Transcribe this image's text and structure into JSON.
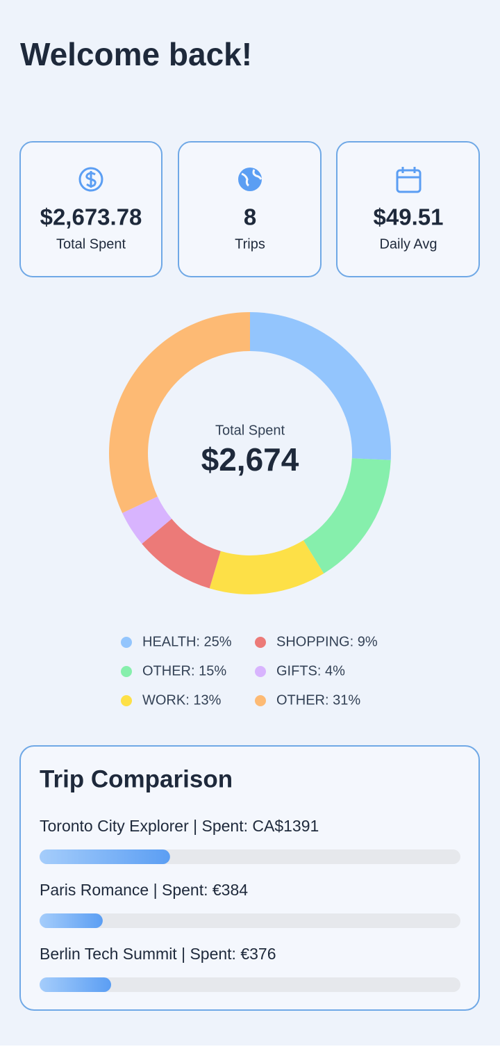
{
  "header": {
    "title": "Welcome back!"
  },
  "stats": [
    {
      "value": "$2,673.78",
      "label": "Total Spent"
    },
    {
      "value": "8",
      "label": "Trips"
    },
    {
      "value": "$49.51",
      "label": "Daily Avg"
    }
  ],
  "chart_data": {
    "type": "donut",
    "center_label": "Total Spent",
    "center_value": "$2,674",
    "values": [
      25,
      15,
      13,
      9,
      4,
      31
    ],
    "value_labels": [
      "HEALTH: 25%",
      "OTHER: 15%",
      "WORK: 13%",
      "SHOPPING: 9%",
      "GIFTS: 4%",
      "OTHER: 31%"
    ],
    "colors": [
      "#93c5fd",
      "#86efac",
      "#fde047",
      "#ec7a78",
      "#d8b4fe",
      "#fdba74"
    ]
  },
  "trip_comparison": {
    "title": "Trip Comparison",
    "trips": [
      {
        "label": "Toronto City Explorer |  Spent: CA$1391",
        "share": 31
      },
      {
        "label": "Paris Romance |  Spent: €384",
        "share": 15
      },
      {
        "label": "Berlin Tech Summit |  Spent: €376",
        "share": 17
      }
    ]
  }
}
